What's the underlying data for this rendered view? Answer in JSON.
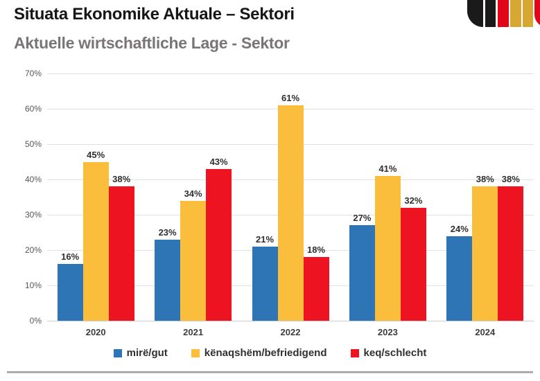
{
  "header": {
    "title": "Situata Ekonomike Aktuale – Sektori",
    "subtitle": "Aktuelle wirtschaftliche Lage - Sektor"
  },
  "logo": {
    "description": "german-flag-color-bars-logo",
    "colors": {
      "black": "#1a1a1a",
      "red": "#e2061a",
      "gold": "#d6a732"
    }
  },
  "chart_data": {
    "type": "bar",
    "categories": [
      "2020",
      "2021",
      "2022",
      "2023",
      "2024"
    ],
    "series": [
      {
        "name": "mirë/gut",
        "color": "#2E75B6",
        "values": [
          16,
          23,
          21,
          27,
          24
        ]
      },
      {
        "name": "kënaqshëm/befriedigend",
        "color": "#FBBE3C",
        "values": [
          45,
          34,
          61,
          41,
          38
        ]
      },
      {
        "name": "keq/schlecht",
        "color": "#EE1320",
        "values": [
          38,
          43,
          18,
          32,
          38
        ]
      }
    ],
    "value_suffix": "%",
    "ylim": [
      0,
      70
    ],
    "ytick_step": 10,
    "yticks": [
      "0%",
      "10%",
      "20%",
      "30%",
      "40%",
      "50%",
      "60%",
      "70%"
    ],
    "grid": true,
    "legend_position": "bottom",
    "data_labels": true
  }
}
